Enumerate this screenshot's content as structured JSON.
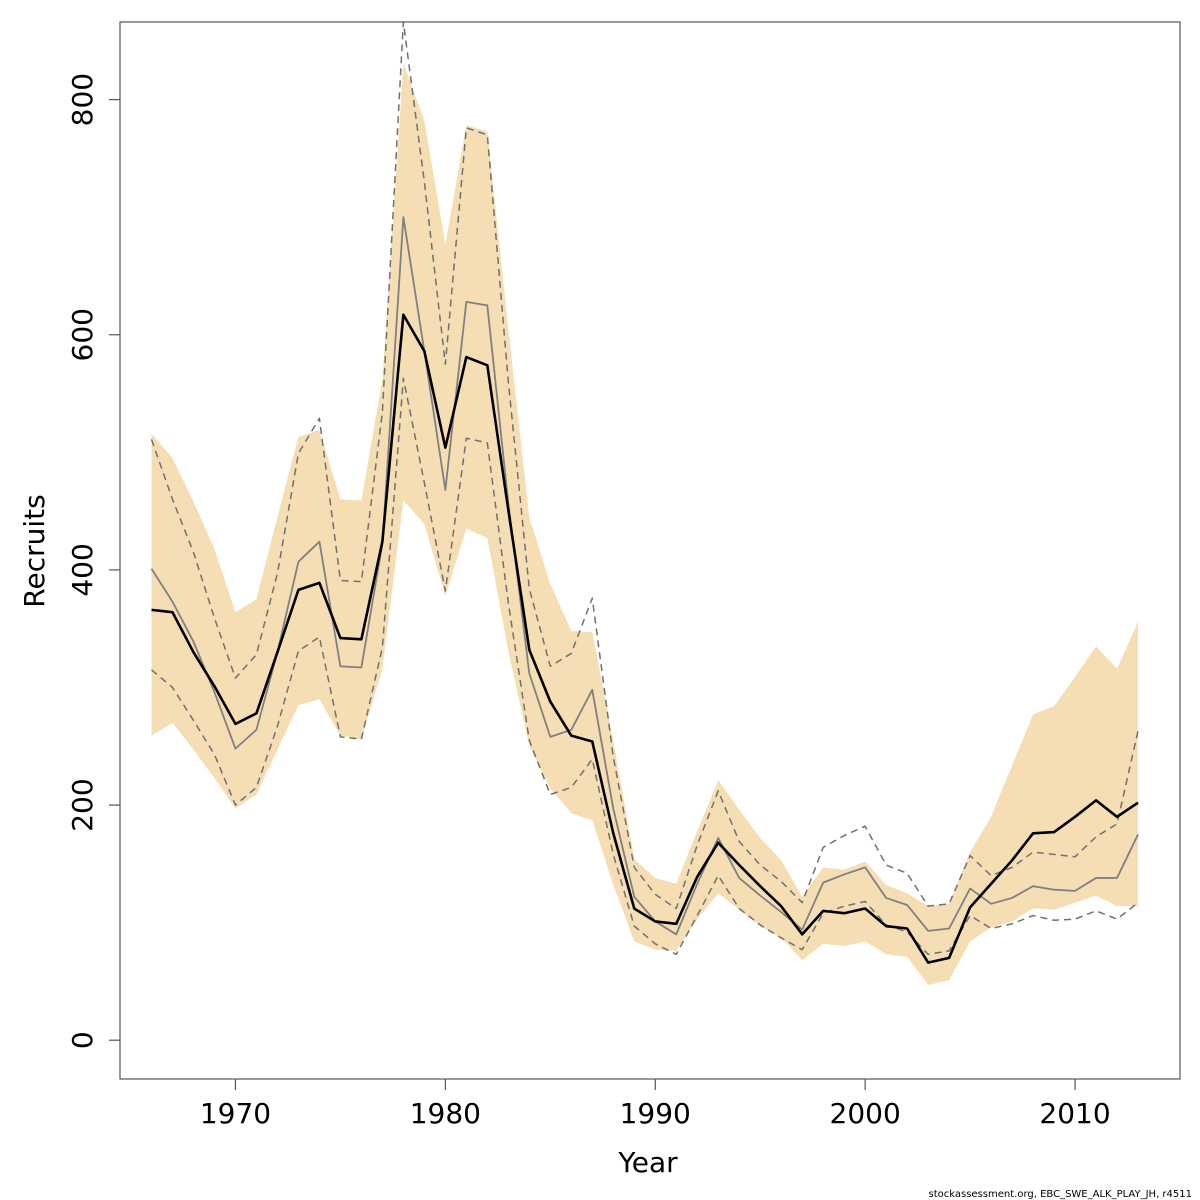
{
  "chart_data": {
    "type": "line",
    "title": "",
    "xlabel": "Year",
    "ylabel": "Recruits",
    "xlim": [
      1964.5,
      2015
    ],
    "ylim": [
      -33,
      866
    ],
    "xticks": [
      1970,
      1980,
      1990,
      2000,
      2010
    ],
    "yticks": [
      0,
      200,
      400,
      600,
      800
    ],
    "grid": false,
    "colors": {
      "band": "#f5deb3",
      "main": "#000000",
      "alt": "#808080",
      "dashed": "#707070",
      "frame": "#555555"
    },
    "x": [
      1966,
      1967,
      1968,
      1969,
      1970,
      1971,
      1972,
      1973,
      1974,
      1975,
      1976,
      1977,
      1978,
      1979,
      1980,
      1981,
      1982,
      1983,
      1984,
      1985,
      1986,
      1987,
      1988,
      1989,
      1990,
      1991,
      1992,
      1993,
      1994,
      1995,
      1996,
      1997,
      1998,
      1999,
      2000,
      2001,
      2002,
      2003,
      2004,
      2005,
      2006,
      2007,
      2008,
      2009,
      2010,
      2011,
      2012,
      2013
    ],
    "series": [
      {
        "name": "band_upper",
        "values": [
          516,
          495,
          458,
          418,
          364,
          375,
          445,
          513,
          519,
          460,
          459,
          562,
          831,
          782,
          677,
          778,
          773,
          605,
          445,
          388,
          348,
          347,
          255,
          154,
          138,
          133,
          178,
          221,
          196,
          172,
          153,
          122,
          147,
          145,
          152,
          132,
          125,
          114,
          116,
          160,
          190,
          234,
          277,
          284,
          309,
          335,
          316,
          356
        ]
      },
      {
        "name": "band_lower",
        "values": [
          259,
          270,
          247,
          223,
          197,
          209,
          247,
          285,
          290,
          259,
          256,
          316,
          459,
          439,
          378,
          435,
          427,
          331,
          250,
          214,
          193,
          187,
          132,
          84,
          77,
          76,
          103,
          125,
          111,
          97,
          87,
          68,
          82,
          80,
          84,
          73,
          71,
          47,
          51,
          84,
          96,
          101,
          112,
          111,
          117,
          123,
          114,
          114
        ]
      },
      {
        "name": "estimate",
        "values": [
          366,
          364,
          330,
          301,
          269,
          278,
          330,
          383,
          389,
          342,
          341,
          424,
          617,
          586,
          504,
          581,
          574,
          451,
          332,
          288,
          259,
          254,
          176,
          112,
          101,
          99,
          139,
          168,
          149,
          131,
          114,
          90,
          110,
          108,
          112,
          97,
          95,
          66,
          70,
          113,
          133,
          153,
          176,
          177,
          190,
          204,
          190,
          202
        ]
      },
      {
        "name": "alt_estimate",
        "values": [
          401,
          373,
          339,
          296,
          248,
          264,
          330,
          407,
          424,
          318,
          317,
          422,
          700,
          586,
          468,
          628,
          625,
          457,
          312,
          258,
          264,
          298,
          197,
          122,
          101,
          90,
          133,
          172,
          138,
          123,
          109,
          94,
          134,
          141,
          147,
          121,
          115,
          93,
          95,
          129,
          116,
          121,
          131,
          128,
          127,
          138,
          138,
          175
        ]
      },
      {
        "name": "alt_upper",
        "values": [
          511,
          460,
          415,
          359,
          308,
          328,
          397,
          499,
          529,
          391,
          390,
          534,
          866,
          730,
          575,
          776,
          770,
          560,
          384,
          318,
          329,
          376,
          241,
          147,
          124,
          112,
          166,
          212,
          169,
          149,
          135,
          117,
          164,
          174,
          182,
          149,
          142,
          114,
          116,
          157,
          140,
          147,
          160,
          158,
          156,
          173,
          184,
          263
        ]
      },
      {
        "name": "alt_lower",
        "values": [
          315,
          300,
          272,
          243,
          200,
          215,
          267,
          331,
          343,
          258,
          256,
          334,
          563,
          474,
          382,
          512,
          508,
          372,
          255,
          209,
          215,
          239,
          158,
          97,
          82,
          73,
          106,
          140,
          112,
          98,
          87,
          77,
          108,
          114,
          118,
          98,
          92,
          73,
          76,
          106,
          95,
          99,
          106,
          102,
          103,
          110,
          103,
          117
        ]
      }
    ]
  },
  "footer_text": "stockassessment.org, EBC_SWE_ALK_PLAY_JH, r4511"
}
